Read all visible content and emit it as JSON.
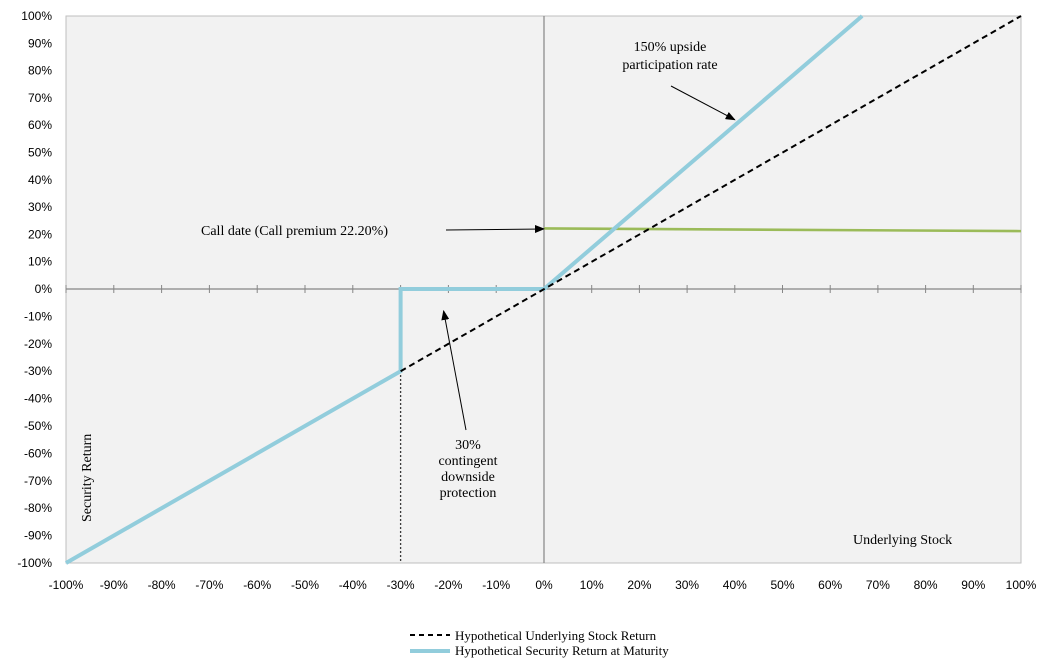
{
  "chart_data": {
    "type": "line",
    "xlim": [
      -100,
      100
    ],
    "ylim": [
      -100,
      100
    ],
    "x_ticks": [
      -100,
      -90,
      -80,
      -70,
      -60,
      -50,
      -40,
      -30,
      -20,
      -10,
      0,
      10,
      20,
      30,
      40,
      50,
      60,
      70,
      80,
      90,
      100
    ],
    "y_ticks": [
      -100,
      -90,
      -80,
      -70,
      -60,
      -50,
      -40,
      -30,
      -20,
      -10,
      0,
      10,
      20,
      30,
      40,
      50,
      60,
      70,
      80,
      90,
      100
    ],
    "x_tick_labels": [
      "-100%",
      "-90%",
      "-80%",
      "-70%",
      "-60%",
      "-50%",
      "-40%",
      "-30%",
      "-20%",
      "-10%",
      "0%",
      "10%",
      "20%",
      "30%",
      "40%",
      "50%",
      "60%",
      "70%",
      "80%",
      "90%",
      "100%"
    ],
    "y_tick_labels": [
      "-100%",
      "-90%",
      "-80%",
      "-70%",
      "-60%",
      "-50%",
      "-40%",
      "-30%",
      "-20%",
      "-10%",
      "0%",
      "10%",
      "20%",
      "30%",
      "40%",
      "50%",
      "60%",
      "70%",
      "80%",
      "90%",
      "100%"
    ],
    "xlabel": "Underlying Stock",
    "ylabel": "Security Return",
    "grid": false,
    "legend_position": "bottom-center",
    "series": [
      {
        "name": "Hypothetical Underlying Stock Return",
        "color": "#000000",
        "style": "dashed",
        "points": [
          [
            -30,
            -30
          ],
          [
            100,
            100
          ]
        ]
      },
      {
        "name": "Hypothetical Security Return at Maturity",
        "color": "#92cddc",
        "style": "solid",
        "points": [
          [
            -100,
            -100
          ],
          [
            -30,
            -30
          ],
          [
            -30,
            0
          ],
          [
            0,
            0
          ],
          [
            66.7,
            100
          ]
        ]
      },
      {
        "color": "#9bbb59",
        "style": "solid",
        "points": [
          [
            0,
            22.2
          ],
          [
            100,
            21.2
          ]
        ]
      }
    ],
    "reference_line": {
      "style": "dotted",
      "points": [
        [
          -30,
          -30
        ],
        [
          -30,
          -100
        ]
      ]
    },
    "annotations": [
      {
        "lines": [
          "150% upside",
          "participation rate"
        ],
        "arrow_to": [
          40,
          62
        ]
      },
      {
        "lines": [
          "Call date (Call premium 22.20%)"
        ],
        "arrow_to": [
          0,
          22
        ]
      },
      {
        "lines": [
          "30%",
          "contingent",
          "downside",
          "protection"
        ],
        "arrow_to": [
          -21,
          -8
        ]
      }
    ],
    "colors": {
      "plot_background": "#f2f2f2",
      "axis": "#868686"
    }
  }
}
